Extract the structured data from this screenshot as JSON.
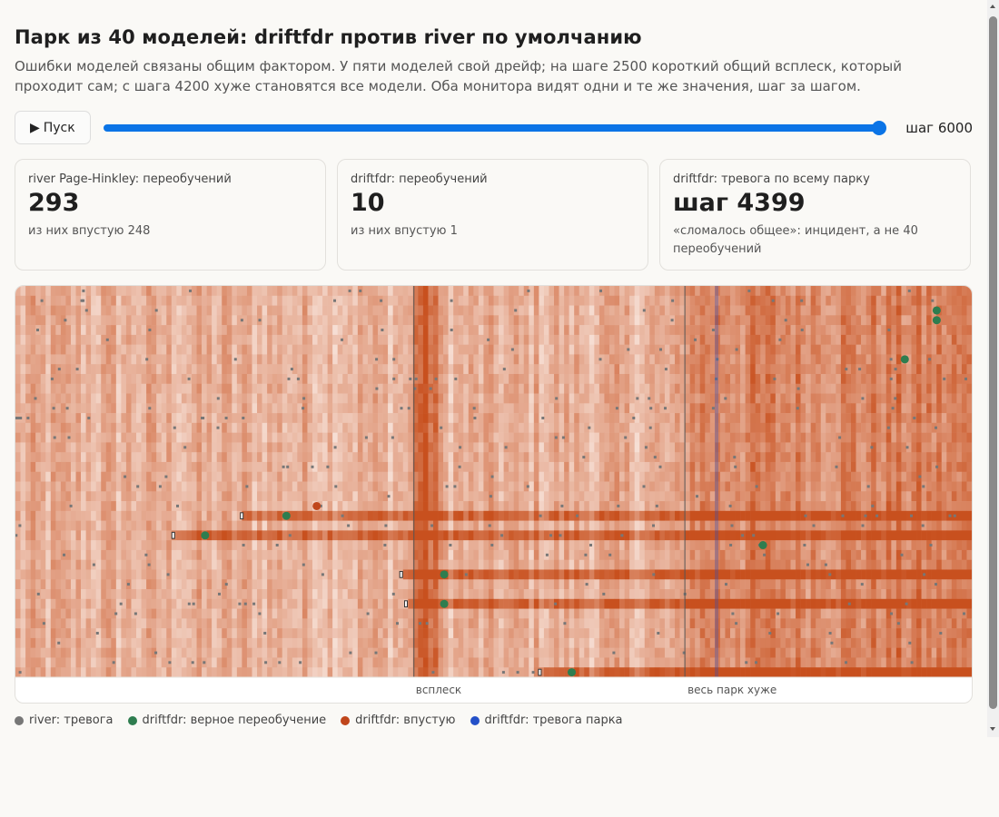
{
  "header": {
    "title": "Парк из 40 моделей: driftfdr против river по умолчанию",
    "subtitle": "Ошибки моделей связаны общим фактором. У пяти моделей свой дрейф; на шаге 2500 короткий общий всплеск, который проходит сам; с шага 4200 хуже становятся все модели. Оба монитора видят одни и те же значения, шаг за шагом."
  },
  "controls": {
    "play_icon": "play-icon",
    "play_label": "Пуск",
    "slider_value": 6000,
    "slider_max": 6000,
    "step_label": "шаг 6000"
  },
  "cards": [
    {
      "label": "river Page-Hinkley: переобучений",
      "value": "293",
      "note": "из них впустую 248"
    },
    {
      "label": "driftfdr: переобучений",
      "value": "10",
      "note": "из них впустую 1"
    },
    {
      "label": "driftfdr: тревога по всему парку",
      "value": "шаг 4399",
      "note": "«сломалось общее»: инцидент, а не 40 переобучений"
    }
  ],
  "chart_data": {
    "type": "heatmap",
    "title": "",
    "n_models": 40,
    "x_range": [
      0,
      6000
    ],
    "events": [
      {
        "step": 2500,
        "label": "всплеск"
      },
      {
        "step": 4200,
        "label": "весь парк хуже"
      }
    ],
    "drifted_models": [
      {
        "row": 23,
        "drift_start": 1420
      },
      {
        "row": 25,
        "drift_start": 990
      },
      {
        "row": 29,
        "drift_start": 2420
      },
      {
        "row": 32,
        "drift_start": 2450
      },
      {
        "row": 39,
        "drift_start": 3290
      }
    ],
    "driftfdr_fleet_alarm_step": 4399,
    "driftfdr_retrains": [
      {
        "row": 2,
        "step": 5780,
        "kind": "correct"
      },
      {
        "row": 3,
        "step": 5780,
        "kind": "correct"
      },
      {
        "row": 7,
        "step": 5580,
        "kind": "correct"
      },
      {
        "row": 22,
        "step": 1890,
        "kind": "wasted"
      },
      {
        "row": 23,
        "step": 1700,
        "kind": "correct"
      },
      {
        "row": 25,
        "step": 1190,
        "kind": "correct"
      },
      {
        "row": 26,
        "step": 4690,
        "kind": "correct"
      },
      {
        "row": 29,
        "step": 2690,
        "kind": "correct"
      },
      {
        "row": 32,
        "step": 2690,
        "kind": "correct"
      },
      {
        "row": 39,
        "step": 3490,
        "kind": "correct"
      }
    ],
    "river_alarm_count": 293,
    "colors": {
      "river_alarm": "#777777",
      "driftfdr_correct": "#2e7d4f",
      "driftfdr_wasted": "#c0461b",
      "driftfdr_fleet": "#2450c8",
      "heat_low": "#fdf3ee",
      "heat_high": "#c8501e"
    }
  },
  "event_labels": {
    "spike": "всплеск",
    "fleet": "весь парк хуже"
  },
  "legend": [
    {
      "label": "river: тревога",
      "color": "#777777"
    },
    {
      "label": "driftfdr: верное переобучение",
      "color": "#2e7d4f"
    },
    {
      "label": "driftfdr: впустую",
      "color": "#c0461b"
    },
    {
      "label": "driftfdr: тревога парка",
      "color": "#2450c8"
    }
  ]
}
